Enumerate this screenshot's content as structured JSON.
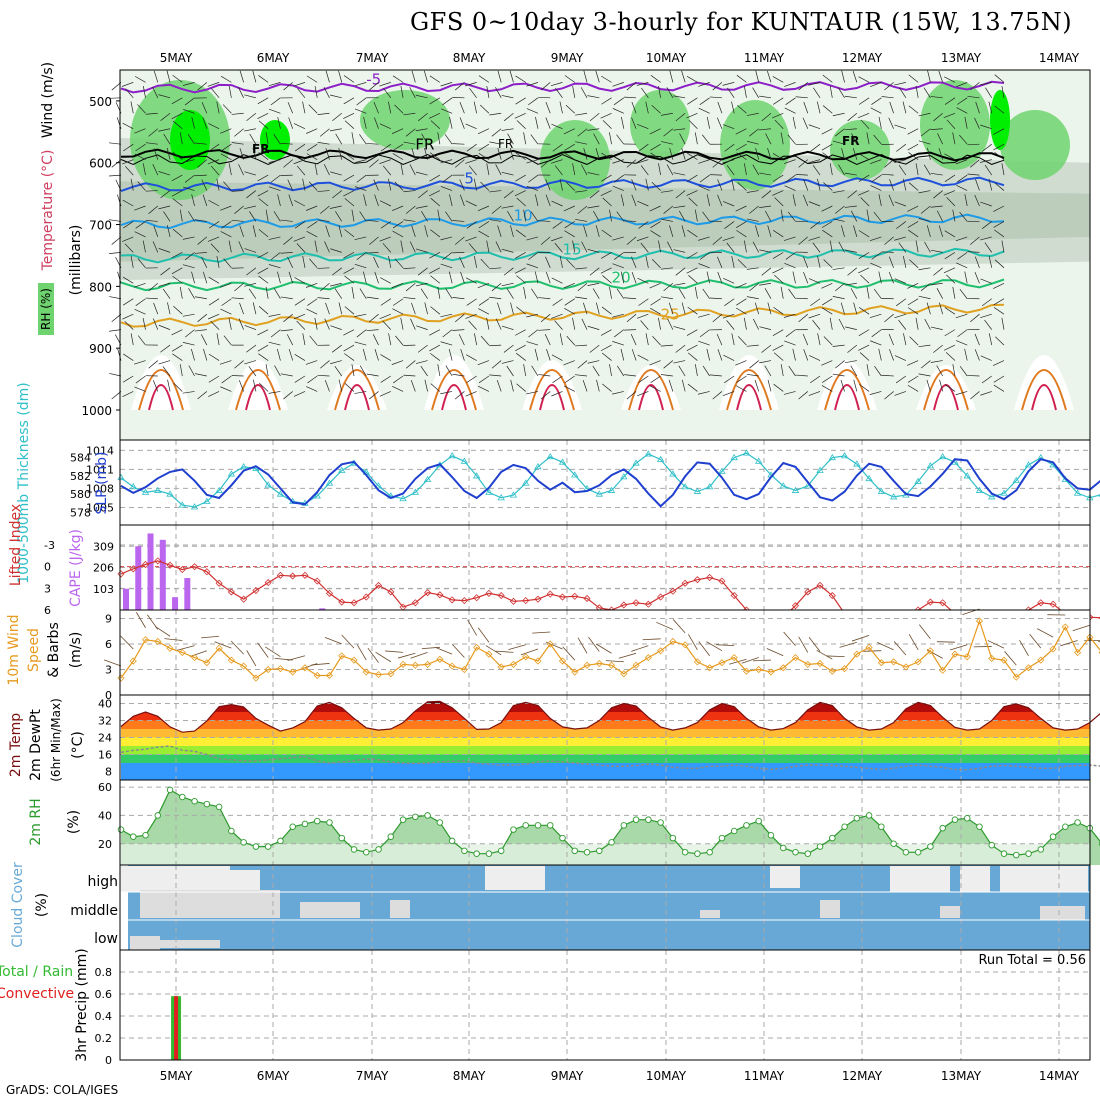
{
  "title": "GFS 0~10day 3-hourly for KUNTAUR (15W, 13.75N)",
  "credit": "GrADS: COLA/IGES",
  "chart_data": [
    {
      "panel": "upper-air",
      "type": "heatmap",
      "days": [
        "5MAY",
        "6MAY",
        "7MAY",
        "8MAY",
        "9MAY",
        "10MAY",
        "11MAY",
        "12MAY",
        "13MAY",
        "14MAY"
      ],
      "ylabel_parts": {
        "rh": "RH (%)",
        "temperature": "Temperature (°C)",
        "wind": "Wind (m/s)",
        "unit": "(millibars)"
      },
      "yticks": [
        500,
        600,
        700,
        800,
        900,
        1000
      ],
      "ylim": [
        1000,
        450
      ],
      "freezing_label": "FR",
      "temperature_isotherms": [
        {
          "label": "-5",
          "color": "#8c1fc8",
          "levels_mb": [
            480,
            475
          ]
        },
        {
          "label": "FR",
          "color": "#000000",
          "levels_mb": [
            585,
            590
          ]
        },
        {
          "label": "5",
          "color": "#1e50dc",
          "levels_mb": [
            640,
            630
          ]
        },
        {
          "label": "10",
          "color": "#1e9be6",
          "levels_mb": [
            700,
            690
          ]
        },
        {
          "label": "15",
          "color": "#1fbfae",
          "levels_mb": [
            755,
            745
          ]
        },
        {
          "label": "20",
          "color": "#1fbf6e",
          "levels_mb": [
            800,
            795
          ]
        },
        {
          "label": "25",
          "color": "#e0a020",
          "levels_mb": [
            860,
            835
          ]
        }
      ]
    },
    {
      "panel": "slp-thickness",
      "type": "line",
      "ylabel_left": "1000-500mb Thickness (dm)",
      "ylabel_right": "SLP (mb)",
      "yticks_slp": [
        1005,
        1008,
        1011,
        1014
      ],
      "yticks_thickness": [
        578,
        580,
        582,
        584
      ],
      "series": [
        {
          "name": "SLP (mb)",
          "color": "#1f3fcf",
          "values": [
            1008.4,
            1007.3,
            1008.2,
            1009.6,
            1010.6,
            1011.0,
            1009.2,
            1007.0,
            1006.5,
            1008.5,
            1010.8,
            1011.5,
            1010.2,
            1008.0,
            1005.8,
            1005.5,
            1007.4,
            1010.1,
            1011.8,
            1012.2,
            1010.1,
            1007.7,
            1006.5,
            1007.2,
            1009.5,
            1011.2,
            1011.8,
            1009.8,
            1007.6,
            1006.5,
            1008.1,
            1010.6,
            1011.7,
            1011.2,
            1009.2,
            1007.8,
            1008.9,
            1007.4,
            1007.6,
            1008.5,
            1010.1,
            1011.0,
            1009.5,
            1007.2,
            1005.2,
            1007.0,
            1009.9,
            1012.1,
            1011.9,
            1009.7,
            1007.0,
            1006.3,
            1007.1,
            1009.8,
            1012.0,
            1011.4,
            1009.0,
            1006.6,
            1006.1,
            1007.5,
            1010.0,
            1011.9,
            1011.4,
            1009.2,
            1007.1,
            1006.8,
            1008.3,
            1010.3,
            1012.6,
            1012.4,
            1009.5,
            1007.2,
            1006.3,
            1007.7,
            1010.7,
            1012.6,
            1012.1,
            1009.6,
            1008.0,
            1007.8,
            1009.4,
            1012.3,
            1013.9,
            1012.6,
            1010.4,
            1008.4,
            1008.2,
            1010.1,
            1011.2
          ]
        },
        {
          "name": "1000-500mb Thickness (dm)",
          "color": "#2fbfc8",
          "values": [
            581.8,
            580.8,
            580.2,
            580.4,
            580.0,
            578.8,
            578.6,
            579.2,
            580.4,
            582.2,
            583.0,
            582.8,
            581.0,
            580.0,
            579.2,
            579.0,
            579.8,
            581.2,
            582.6,
            583.4,
            582.4,
            580.9,
            579.8,
            579.5,
            580.2,
            581.6,
            583.2,
            584.2,
            583.6,
            582.0,
            580.2,
            579.6,
            579.9,
            581.2,
            583.0,
            584.1,
            583.5,
            582.1,
            580.6,
            580.0,
            580.4,
            581.9,
            583.4,
            584.4,
            583.8,
            582.2,
            580.8,
            580.3,
            580.8,
            582.5,
            584.0,
            584.5,
            583.6,
            582.1,
            580.9,
            580.4,
            580.9,
            582.6,
            584.0,
            584.2,
            583.3,
            581.7,
            580.3,
            579.7,
            579.9,
            581.4,
            583.1,
            584.1,
            583.5,
            582.0,
            580.4,
            579.7,
            580.1,
            581.5,
            583.2,
            584.0,
            583.2,
            581.6,
            580.1,
            579.6,
            580.0,
            581.5,
            583.0,
            583.6,
            583.0,
            581.7,
            580.2,
            580.0,
            580.5
          ]
        }
      ]
    },
    {
      "panel": "lifted-index-cape",
      "type": "bar",
      "ylabel_left": "Lifted Index",
      "ylabel_right": "CAPE (J/kg)",
      "yticks_li": [
        -3,
        0,
        3,
        6
      ],
      "yticks_cape": [
        103,
        206,
        309
      ],
      "cape_values": [
        103,
        309,
        371,
        340,
        62,
        155,
        0,
        0,
        0,
        0,
        0,
        0,
        0,
        0,
        0,
        0,
        8,
        0
      ],
      "lifted_index": [
        1.0,
        0.3,
        -0.3,
        -0.8,
        -0.2,
        0.4,
        0.0,
        0.7,
        2.3,
        3.5,
        4.5,
        3.3,
        2.2,
        1.2,
        1.3,
        1.2,
        2.0,
        3.7,
        4.9,
        5.0,
        4.2,
        2.6,
        3.5,
        5.6,
        5.0,
        3.6,
        3.9,
        4.6,
        4.7,
        4.3,
        3.7,
        4.0,
        4.8,
        4.7,
        4.5,
        3.8,
        4.2,
        4.1,
        4.4,
        5.7,
        6.0,
        5.3,
        5.0,
        5.2,
        4.2,
        3.4,
        2.3,
        1.8,
        1.5,
        2.0,
        4.0,
        6.0,
        6.5,
        6.8,
        7.0,
        5.4,
        3.5,
        2.6,
        4.0,
        6.5,
        7.0,
        7.2,
        7.0,
        6.6,
        7.0,
        6.0,
        4.9,
        5.0,
        6.5,
        7.0,
        7.2,
        6.8,
        7.0,
        7.2,
        6.0,
        5.0,
        5.2,
        6.5,
        7.0,
        7.0,
        7.1,
        6.6,
        6.4,
        7.0,
        7.2,
        6.8,
        6.6,
        6.9,
        7.0
      ]
    },
    {
      "panel": "wind-10m",
      "type": "line",
      "ylabel": "10m Wind Speed & Barbs (m/s)",
      "yticks": [
        0,
        3,
        6,
        9
      ],
      "series": [
        {
          "name": "10m Wind Speed",
          "color": "#e69a1e",
          "values": [
            2.0,
            4.0,
            6.5,
            6.3,
            5.5,
            5.0,
            4.4,
            3.8,
            5.5,
            4.1,
            3.4,
            2.0,
            3.0,
            3.1,
            2.7,
            3.2,
            2.3,
            2.3,
            4.6,
            4.1,
            2.7,
            2.4,
            2.5,
            3.6,
            3.5,
            3.6,
            4.2,
            3.4,
            3.0,
            5.6,
            4.8,
            3.3,
            3.6,
            4.5,
            4.0,
            6.0,
            4.0,
            2.7,
            3.5,
            3.7,
            3.5,
            2.5,
            3.5,
            4.4,
            5.2,
            6.3,
            5.9,
            3.9,
            3.2,
            3.8,
            4.4,
            2.8,
            3.0,
            2.7,
            3.2,
            4.4,
            3.6,
            3.7,
            2.8,
            3.1,
            4.8,
            5.6,
            3.8,
            3.9,
            3.3,
            3.9,
            5.2,
            2.9,
            4.8,
            4.5,
            8.7,
            4.3,
            4.1,
            2.1,
            3.2,
            4.1,
            5.4,
            8.0,
            5.0,
            6.8,
            5.0,
            4.0,
            0.5,
            2.3,
            2.4,
            3.6,
            2.0,
            3.9,
            5.6,
            2.7
          ]
        }
      ]
    },
    {
      "panel": "temp-2m",
      "type": "area",
      "ylabel": "2m Temp 2m DewPt (6hr Min/Max) (°C)",
      "yticks": [
        8,
        16,
        24,
        32,
        40
      ],
      "series": [
        {
          "name": "2m Temp",
          "color": "#7a0f0f",
          "values": [
            29.2,
            34.0,
            36.0,
            34.0,
            29.0,
            26.5,
            27.0,
            31.8,
            38.5,
            39.5,
            38.4,
            33.0,
            29.8,
            27.0,
            28.5,
            31.5,
            38.8,
            40.5,
            38.0,
            33.0,
            28.5,
            27.5,
            28.0,
            31.0,
            36.5,
            40.8,
            41.0,
            38.0,
            33.0,
            27.8,
            28.0,
            31.0,
            39.0,
            40.5,
            39.0,
            33.0,
            29.0,
            28.0,
            28.5,
            32.0,
            38.0,
            40.0,
            38.8,
            33.5,
            29.0,
            27.5,
            28.5,
            31.0,
            37.0,
            40.0,
            38.5,
            33.0,
            29.0,
            27.5,
            28.2,
            31.0,
            37.0,
            40.5,
            39.0,
            33.0,
            29.0,
            27.5,
            28.0,
            31.0,
            37.5,
            40.5,
            39.0,
            33.5,
            28.8,
            27.5,
            28.0,
            32.0,
            38.5,
            39.8,
            38.0,
            33.0,
            28.5,
            27.5,
            28.0,
            31.0,
            36.0,
            39.5,
            38.5,
            32.5,
            29.0,
            25.0
          ]
        },
        {
          "name": "2m DewPt",
          "color": "#8a8a8a",
          "values": [
            17.0,
            18.0,
            18.5,
            19.5,
            20.0,
            18.0,
            17.5,
            16.0,
            14.0,
            13.5,
            13.0,
            13.0,
            13.5,
            14.0,
            14.5,
            15.0,
            13.0,
            12.0,
            12.5,
            13.0,
            14.0,
            13.5,
            12.5,
            12.0,
            11.8,
            12.0,
            12.5,
            12.8,
            13.0,
            12.0,
            11.5,
            11.0,
            11.0,
            11.5,
            12.5,
            13.0,
            12.5,
            12.0,
            11.5,
            11.0,
            10.5,
            10.5,
            10.8,
            11.5,
            11.0,
            10.0,
            9.5,
            9.5,
            10.5,
            10.5,
            11.0,
            10.5,
            9.5,
            9.0,
            9.5,
            10.5,
            11.0,
            11.0,
            10.8,
            10.5,
            10.0,
            9.5,
            9.0,
            9.5,
            10.5,
            11.0,
            10.5,
            10.0,
            9.0,
            8.8,
            9.5,
            10.5,
            10.8,
            10.5,
            10.0,
            9.5,
            9.5,
            10.5,
            10.8,
            11.0,
            10.5,
            10.0
          ]
        }
      ]
    },
    {
      "panel": "rh-2m",
      "type": "area",
      "ylabel": "2m RH (%)",
      "yticks": [
        20,
        40,
        60
      ],
      "series": [
        {
          "name": "2m RH",
          "color": "#2e9a2e",
          "values": [
            30,
            25,
            26,
            40,
            58,
            53,
            50,
            48,
            46,
            29,
            21,
            18,
            18,
            22,
            32,
            34,
            36,
            35,
            24,
            16,
            14,
            16,
            25,
            37,
            39,
            40,
            35,
            22,
            15,
            13,
            13,
            15,
            30,
            33,
            33,
            33,
            24,
            15,
            14,
            15,
            21,
            33,
            37,
            37,
            35,
            24,
            14,
            13,
            14,
            24,
            29,
            33,
            36,
            26,
            17,
            14,
            13,
            18,
            24,
            32,
            38,
            40,
            32,
            20,
            14,
            14,
            18,
            31,
            37,
            38,
            32,
            19,
            13,
            12,
            13,
            16,
            25,
            32,
            35,
            31,
            20,
            14,
            13,
            14,
            17,
            30,
            33,
            34,
            29,
            19,
            17,
            20,
            31,
            41
          ]
        }
      ]
    },
    {
      "panel": "cloud-cover",
      "type": "heatmap",
      "ylabel": "Cloud Cover (%)",
      "layers": [
        "high",
        "middle",
        "low"
      ]
    },
    {
      "panel": "precip-3hr",
      "type": "bar",
      "ylabel_left": "Total / Rain",
      "ylabel_left2": "Convective",
      "ylabel": "3hr Precip (mm)",
      "yticks": [
        0,
        0.2,
        0.4,
        0.6,
        0.8
      ],
      "run_total_label": "Run Total = 0.56",
      "bars": [
        {
          "slot": 4,
          "total": 0.58,
          "convective": 0.58
        }
      ]
    }
  ]
}
